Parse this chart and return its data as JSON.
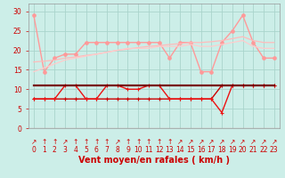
{
  "xlabel": "Vent moyen/en rafales ( km/h )",
  "background_color": "#cceee8",
  "grid_color": "#aad4cc",
  "x_values": [
    0,
    1,
    2,
    3,
    4,
    5,
    6,
    7,
    8,
    9,
    10,
    11,
    12,
    13,
    14,
    15,
    16,
    17,
    18,
    19,
    20,
    21,
    22,
    23
  ],
  "series": [
    {
      "name": "rafales_marker",
      "color": "#ff9999",
      "linewidth": 1.0,
      "marker": "o",
      "markersize": 2.5,
      "linestyle": "-",
      "values": [
        29.0,
        14.5,
        18.0,
        19.0,
        19.0,
        22.0,
        22.0,
        22.0,
        22.0,
        22.0,
        22.0,
        22.0,
        22.0,
        18.0,
        22.0,
        22.0,
        14.5,
        14.5,
        22.0,
        25.0,
        29.0,
        22.0,
        18.0,
        18.0
      ]
    },
    {
      "name": "trend_upper",
      "color": "#ffbbbb",
      "linewidth": 0.9,
      "marker": null,
      "markersize": 0,
      "linestyle": "-",
      "values": [
        17.0,
        17.2,
        17.5,
        18.0,
        18.3,
        18.7,
        19.0,
        19.5,
        20.0,
        20.3,
        20.7,
        21.0,
        21.2,
        21.5,
        21.7,
        22.0,
        22.0,
        22.2,
        22.5,
        23.0,
        23.5,
        22.5,
        22.0,
        22.0
      ]
    },
    {
      "name": "trend_lower",
      "color": "#ffcccc",
      "linewidth": 0.9,
      "marker": null,
      "markersize": 0,
      "linestyle": "-",
      "values": [
        14.5,
        15.5,
        16.5,
        17.5,
        18.0,
        18.5,
        19.0,
        19.5,
        20.0,
        20.5,
        20.5,
        20.5,
        21.0,
        21.0,
        21.0,
        21.5,
        21.0,
        21.0,
        21.5,
        22.0,
        22.5,
        21.0,
        20.5,
        20.5
      ]
    },
    {
      "name": "vent_moyen_flat",
      "color": "#cc0000",
      "linewidth": 1.0,
      "marker": "+",
      "markersize": 3.5,
      "linestyle": "-",
      "values": [
        7.5,
        7.5,
        7.5,
        7.5,
        7.5,
        7.5,
        7.5,
        7.5,
        7.5,
        7.5,
        7.5,
        7.5,
        7.5,
        7.5,
        7.5,
        7.5,
        7.5,
        7.5,
        11.0,
        11.0,
        11.0,
        11.0,
        11.0,
        11.0
      ]
    },
    {
      "name": "vent_moyen_var",
      "color": "#ee1111",
      "linewidth": 1.0,
      "marker": "+",
      "markersize": 3.5,
      "linestyle": "-",
      "values": [
        7.5,
        7.5,
        7.5,
        11.0,
        11.0,
        7.5,
        7.5,
        11.0,
        11.0,
        10.0,
        10.0,
        11.0,
        11.0,
        7.5,
        7.5,
        7.5,
        7.5,
        7.5,
        4.0,
        11.0,
        11.0,
        11.0,
        11.0,
        11.0
      ]
    },
    {
      "name": "constant_line",
      "color": "#770000",
      "linewidth": 1.6,
      "marker": null,
      "markersize": 0,
      "linestyle": "-",
      "values": [
        11.0,
        11.0,
        11.0,
        11.0,
        11.0,
        11.0,
        11.0,
        11.0,
        11.0,
        11.0,
        11.0,
        11.0,
        11.0,
        11.0,
        11.0,
        11.0,
        11.0,
        11.0,
        11.0,
        11.0,
        11.0,
        11.0,
        11.0,
        11.0
      ]
    }
  ],
  "ylim": [
    0,
    32
  ],
  "yticks": [
    0,
    5,
    10,
    15,
    20,
    25,
    30
  ],
  "xlim": [
    -0.5,
    23.5
  ],
  "xticks": [
    0,
    1,
    2,
    3,
    4,
    5,
    6,
    7,
    8,
    9,
    10,
    11,
    12,
    13,
    14,
    15,
    16,
    17,
    18,
    19,
    20,
    21,
    22,
    23
  ],
  "arrow_labels": [
    "↗",
    "↑",
    "↑",
    "↗",
    "↑",
    "↑",
    "↑",
    "↑",
    "↗",
    "↑",
    "↑",
    "↑",
    "↑",
    "↑",
    "↗",
    "↗",
    "↗",
    "↗",
    "↗",
    "↗",
    "↗",
    "↗",
    "↗",
    "↗"
  ],
  "tick_fontsize": 5.5,
  "label_fontsize": 7
}
